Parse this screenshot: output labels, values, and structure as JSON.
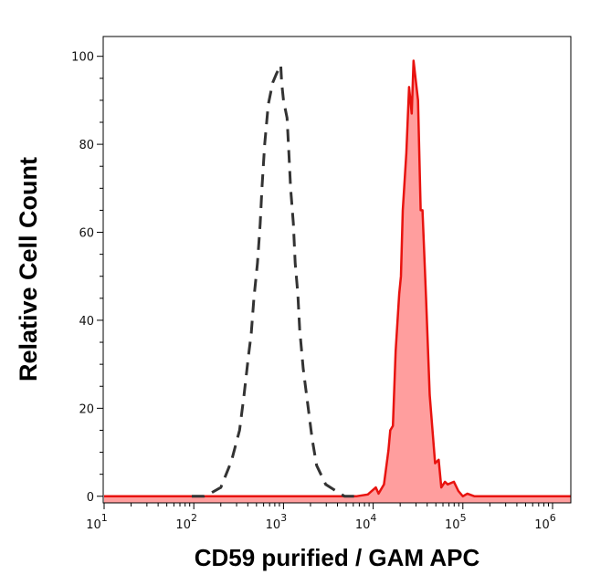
{
  "chart_data": {
    "type": "area",
    "title": "",
    "xlabel": "CD59 purified / GAM APC",
    "ylabel": "Relative Cell Count",
    "xscale": "log",
    "xlim": [
      10,
      1600000
    ],
    "ylim": [
      -1.5,
      104.5
    ],
    "x_ticks": [
      {
        "base": "10",
        "exp": "1",
        "value": 10
      },
      {
        "base": "10",
        "exp": "2",
        "value": 100
      },
      {
        "base": "10",
        "exp": "3",
        "value": 1000
      },
      {
        "base": "10",
        "exp": "4",
        "value": 10000
      },
      {
        "base": "10",
        "exp": "5",
        "value": 100000
      },
      {
        "base": "10",
        "exp": "6",
        "value": 1000000
      }
    ],
    "y_ticks": [
      "0",
      "20",
      "40",
      "60",
      "80",
      "100"
    ],
    "grid": false,
    "legend": "none",
    "series": [
      {
        "style": "dashed-line",
        "color": "#333333",
        "x": [
          95,
          129,
          151,
          200,
          263,
          324,
          363,
          407,
          437,
          468,
          513,
          550,
          575,
          617,
          676,
          759,
          832,
          933,
          955,
          1000,
          1096,
          1148,
          1202,
          1288,
          1349,
          1445,
          1514,
          1660,
          1862,
          2089,
          2344,
          2951,
          4786,
          6457
        ],
        "y": [
          0,
          0,
          0.6,
          2,
          8,
          15,
          23,
          32,
          37,
          45,
          53,
          62,
          70,
          80,
          89,
          94,
          96,
          98,
          94,
          90,
          86,
          78,
          70,
          62,
          53,
          46,
          38,
          29,
          21,
          13,
          7,
          2.7,
          0,
          0
        ]
      },
      {
        "style": "filled",
        "color": "#e8130f",
        "fill": "#ff9e9e",
        "x": [
          10,
          6457,
          8710,
          10715,
          11482,
          13183,
          14791,
          15488,
          16596,
          17783,
          19498,
          20417,
          21380,
          23442,
          25119,
          26915,
          28184,
          31623,
          33884,
          35481,
          38905,
          42658,
          48978,
          53703,
          57544,
          63096,
          67608,
          79433,
          89125,
          100000,
          112202,
          134896,
          1600000
        ],
        "y": [
          0,
          0,
          0.4,
          2,
          0.6,
          2.7,
          10.4,
          15,
          16,
          33,
          46,
          50,
          65,
          78,
          93,
          87,
          99,
          90,
          65,
          65,
          45,
          23,
          7.5,
          8.3,
          2,
          3.3,
          2.7,
          3.3,
          1.2,
          0,
          0.6,
          0,
          0
        ]
      }
    ]
  }
}
